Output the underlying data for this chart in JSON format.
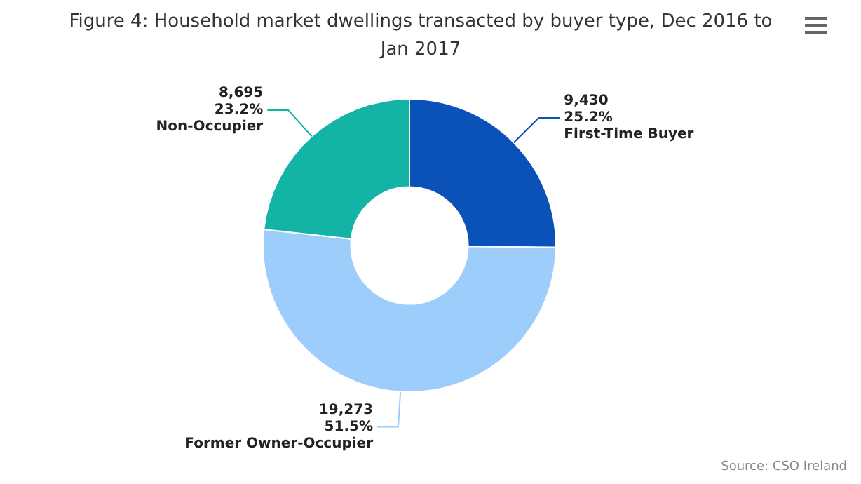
{
  "chart_data": {
    "type": "donut",
    "title": "Figure 4: Household market dwellings transacted by buyer type, Dec 2016 to Jan 2017",
    "categories": [
      "First-Time Buyer",
      "Former Owner-Occupier",
      "Non-Occupier"
    ],
    "values": [
      9430,
      19273,
      8695
    ],
    "colors": [
      "#0b52b8",
      "#9ccdfb",
      "#13b3a6"
    ],
    "value_labels": [
      "9,430\n25.2%",
      "19,273\n51.5%",
      "8,695\n23.2%"
    ],
    "legend": false,
    "annotations": [
      "Source: CSO Ireland"
    ]
  }
}
